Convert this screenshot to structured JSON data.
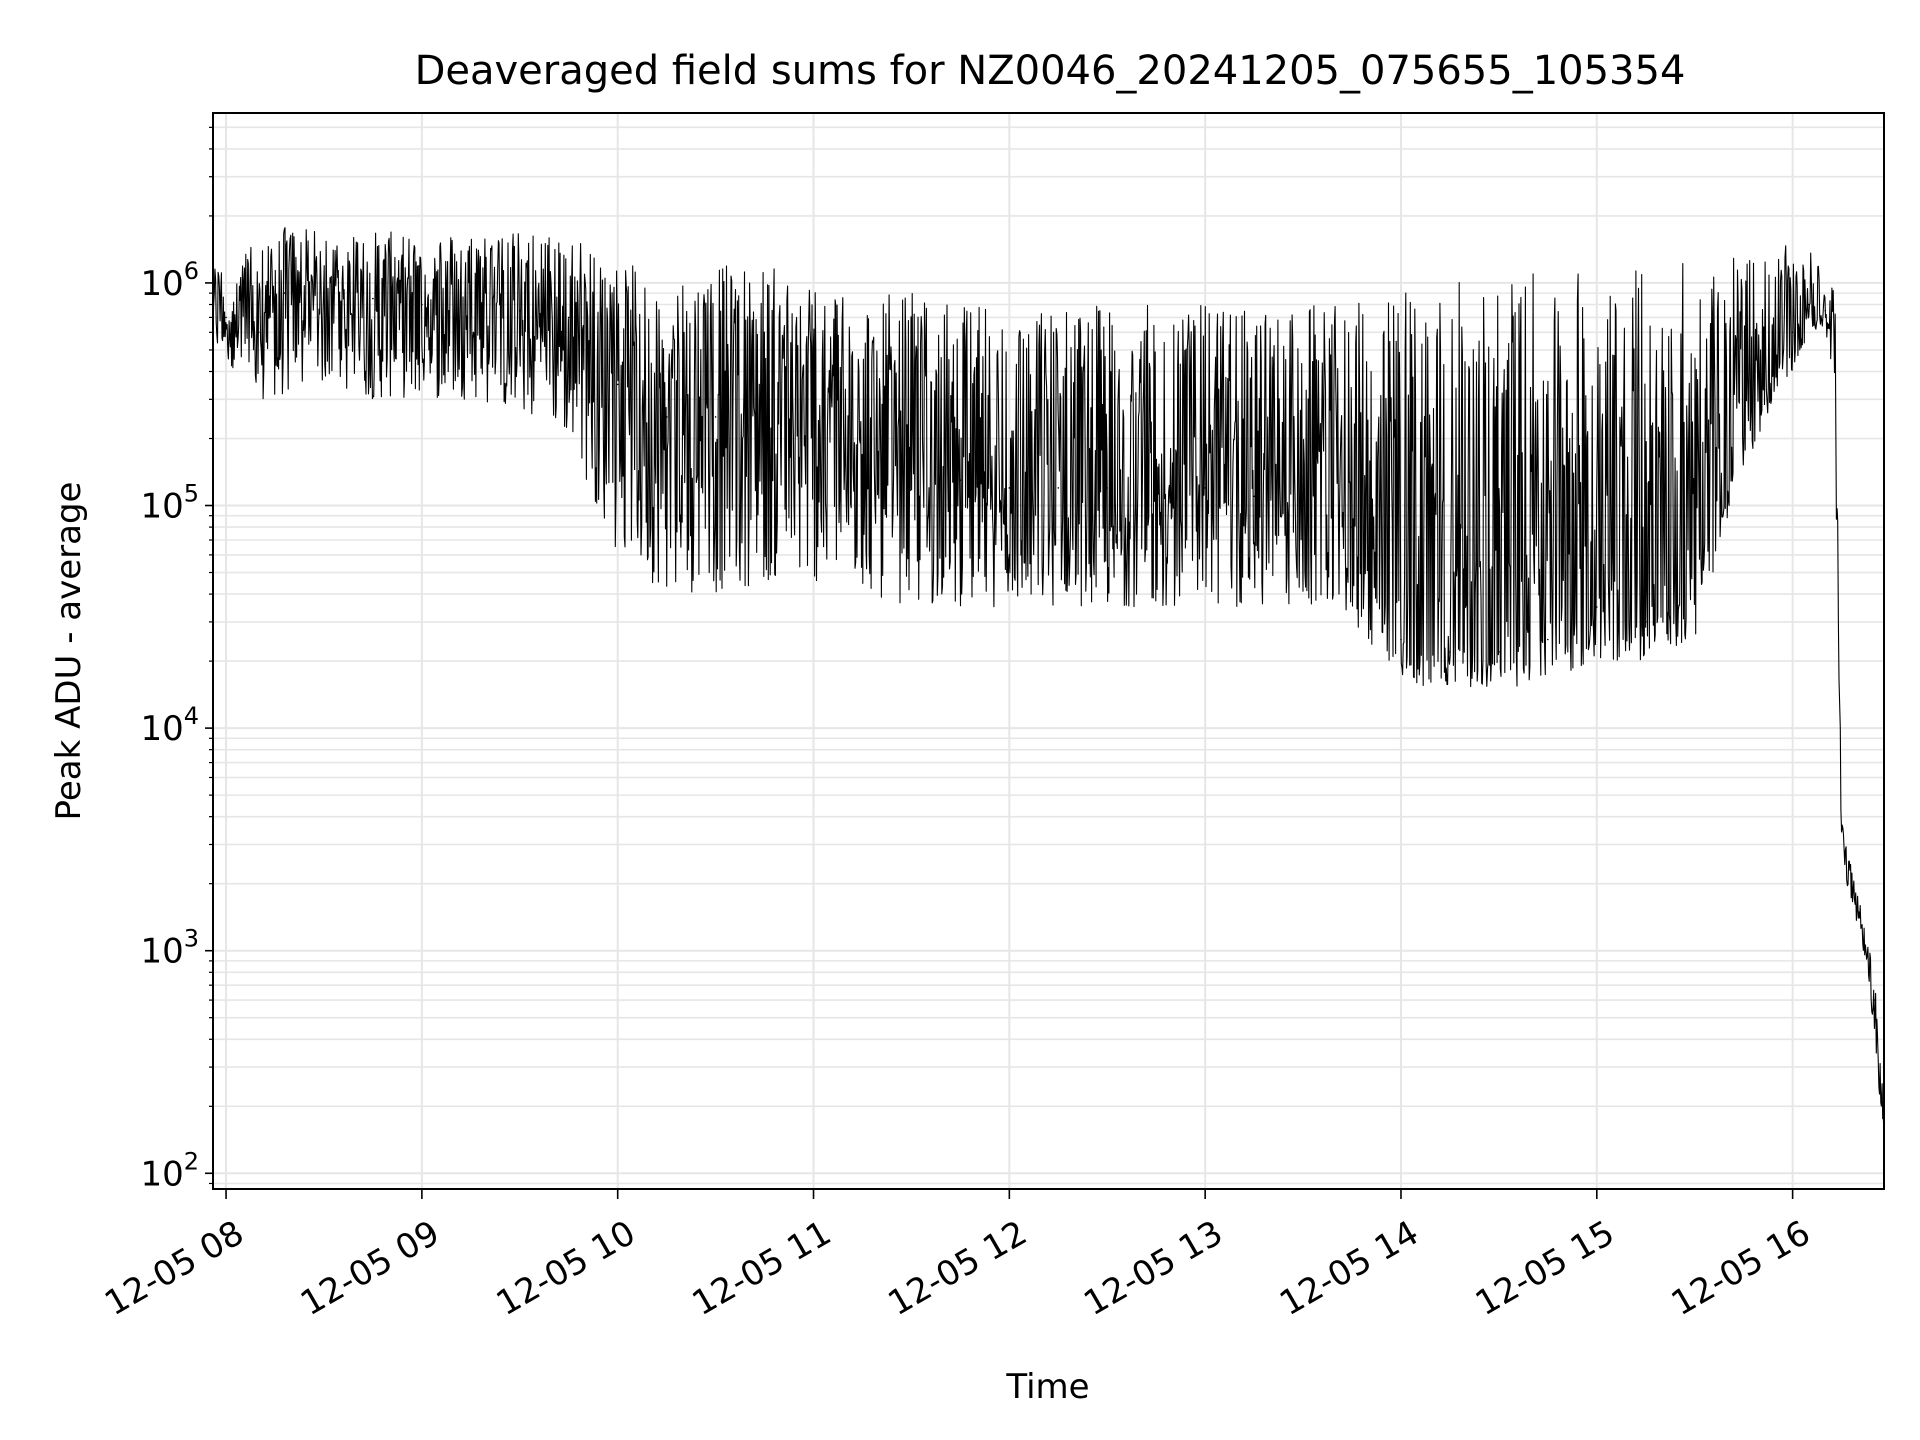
{
  "chart_data": {
    "type": "line",
    "title": "Deaveraged field sums for NZ0046_20241205_075655_105354",
    "xlabel": "Time",
    "ylabel": "Peak ADU - average",
    "yscale": "log",
    "ylim": [
      85,
      5800000
    ],
    "xlim": [
      "2024-12-05 07:56",
      "2024-12-05 16:28"
    ],
    "grid": true,
    "line_color": "#000000",
    "x_ticks": [
      "12-05 08",
      "12-05 09",
      "12-05 10",
      "12-05 11",
      "12-05 12",
      "12-05 13",
      "12-05 14",
      "12-05 15",
      "12-05 16"
    ],
    "y_ticks": [
      {
        "base": "10",
        "exp": "2",
        "value": 100
      },
      {
        "base": "10",
        "exp": "3",
        "value": 1000
      },
      {
        "base": "10",
        "exp": "4",
        "value": 10000
      },
      {
        "base": "10",
        "exp": "5",
        "value": 100000
      },
      {
        "base": "10",
        "exp": "6",
        "value": 1000000
      }
    ],
    "series": [
      {
        "x": [
          "2024-12-05 07:56",
          "2024-12-05 08:00",
          "2024-12-05 08:10",
          "2024-12-05 08:18",
          "2024-12-05 08:30",
          "2024-12-05 08:45",
          "2024-12-05 09:00",
          "2024-12-05 09:15",
          "2024-12-05 09:30",
          "2024-12-05 09:45",
          "2024-12-05 10:00",
          "2024-12-05 10:15",
          "2024-12-05 10:30",
          "2024-12-05 10:45",
          "2024-12-05 11:00",
          "2024-12-05 11:15",
          "2024-12-05 11:30",
          "2024-12-05 11:45",
          "2024-12-05 12:00",
          "2024-12-05 12:15",
          "2024-12-05 12:30",
          "2024-12-05 12:45",
          "2024-12-05 13:00",
          "2024-12-05 13:15",
          "2024-12-05 13:30",
          "2024-12-05 13:45",
          "2024-12-05 14:00",
          "2024-12-05 14:15",
          "2024-12-05 14:30",
          "2024-12-05 14:45",
          "2024-12-05 15:00",
          "2024-12-05 15:15",
          "2024-12-05 15:30",
          "2024-12-05 15:45",
          "2024-12-05 16:00",
          "2024-12-05 16:05",
          "2024-12-05 16:10",
          "2024-12-05 16:13",
          "2024-12-05 16:15",
          "2024-12-05 16:20",
          "2024-12-05 16:25",
          "2024-12-05 16:28"
        ],
        "y": [
          800000,
          700000,
          600000,
          900000,
          900000,
          850000,
          800000,
          800000,
          750000,
          700000,
          350000,
          250000,
          250000,
          300000,
          250000,
          150000,
          150000,
          130000,
          120000,
          120000,
          120000,
          120000,
          120000,
          110000,
          100000,
          80000,
          25000,
          22000,
          22000,
          25000,
          35000,
          30000,
          40000,
          200000,
          600000,
          800000,
          750000,
          400000,
          3500,
          1500,
          600,
          150
        ],
        "y_low": [
          500000,
          450000,
          300000,
          300000,
          350000,
          300000,
          300000,
          300000,
          250000,
          200000,
          60000,
          40000,
          40000,
          45000,
          45000,
          40000,
          35000,
          35000,
          35000,
          35000,
          35000,
          35000,
          35000,
          35000,
          35000,
          30000,
          16000,
          15000,
          15000,
          16000,
          20000,
          20000,
          25000,
          150000,
          400000,
          600000,
          600000,
          200000,
          2500,
          1200,
          450,
          120
        ],
        "y_high": [
          1200000,
          1300000,
          1500000,
          1800000,
          1700000,
          1700000,
          1700000,
          1700000,
          1700000,
          1700000,
          1200000,
          1200000,
          1200000,
          1200000,
          1100000,
          900000,
          900000,
          800000,
          800000,
          800000,
          800000,
          800000,
          800000,
          800000,
          800000,
          800000,
          1000000,
          1000000,
          1100000,
          1100000,
          1200000,
          1200000,
          1300000,
          1300000,
          1500000,
          1800000,
          1100000,
          900000,
          4000,
          1800,
          800,
          200
        ]
      }
    ]
  }
}
